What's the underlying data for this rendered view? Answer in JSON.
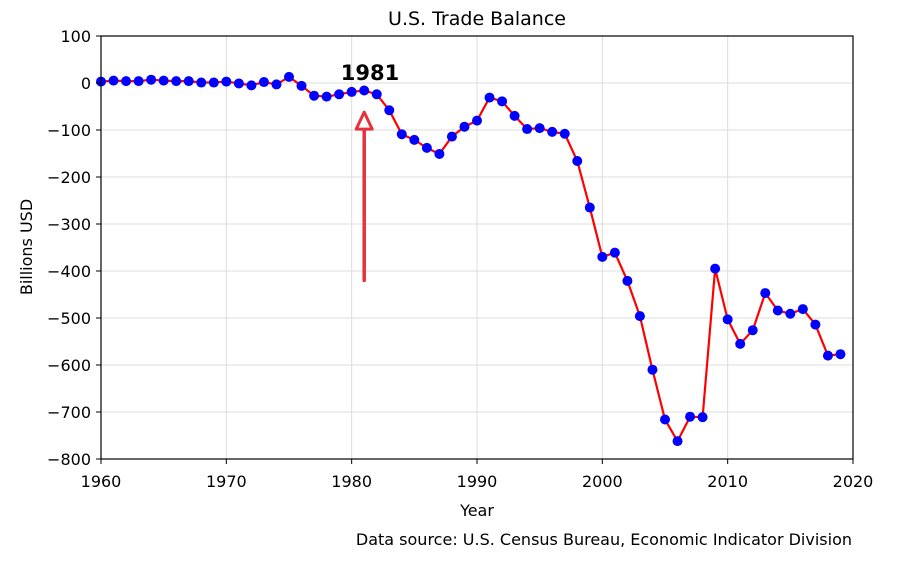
{
  "chart_data": {
    "type": "line",
    "title": "U.S. Trade Balance",
    "xlabel": "Year",
    "ylabel": "Billions USD",
    "xlim": [
      1960,
      2020
    ],
    "ylim": [
      -800,
      100
    ],
    "xticks": [
      1960,
      1970,
      1980,
      1990,
      2000,
      2010,
      2020
    ],
    "xtick_labels": [
      "1960",
      "1970",
      "1980",
      "1990",
      "2000",
      "2010",
      "2020"
    ],
    "yticks": [
      100,
      0,
      -100,
      -200,
      -300,
      -400,
      -500,
      -600,
      -700,
      -800
    ],
    "ytick_labels": [
      "100",
      "0",
      "−100",
      "−200",
      "−300",
      "−400",
      "−500",
      "−600",
      "−700",
      "−800"
    ],
    "grid": true,
    "line_color": "#ff0000",
    "marker_color": "#0000ff",
    "series": [
      {
        "x": [
          1960,
          1961,
          1962,
          1963,
          1964,
          1965,
          1966,
          1967,
          1968,
          1969,
          1970,
          1971,
          1972,
          1973,
          1974,
          1975,
          1976,
          1977,
          1978,
          1979,
          1980,
          1981,
          1982,
          1983,
          1984,
          1985,
          1986,
          1987,
          1988,
          1989,
          1990,
          1991,
          1992,
          1993,
          1994,
          1995,
          1996,
          1997,
          1998,
          1999,
          2000,
          2001,
          2002,
          2003,
          2004,
          2005,
          2006,
          2007,
          2008,
          2009,
          2010,
          2011,
          2012,
          2013,
          2014,
          2015,
          2016,
          2017,
          2018,
          2019
        ],
        "values": [
          3,
          5,
          4,
          4,
          7,
          5,
          4,
          4,
          1,
          1,
          3,
          -1,
          -5,
          2,
          -3,
          13,
          -6,
          -27,
          -29,
          -24,
          -19,
          -16,
          -24,
          -58,
          -109,
          -121,
          -138,
          -151,
          -114,
          -93,
          -80,
          -31,
          -39,
          -70,
          -98,
          -96,
          -104,
          -108,
          -166,
          -265,
          -370,
          -361,
          -421,
          -496,
          -610,
          -716,
          -762,
          -710,
          -711,
          -395,
          -503,
          -555,
          -526,
          -447,
          -484,
          -491,
          -481,
          -514,
          -580,
          -577
        ]
      }
    ],
    "annotation": {
      "text": "1981",
      "x": 1981,
      "arrow_from_y": -420,
      "arrow_to_y": -62,
      "arrow_color": "#e8303a"
    },
    "source_note": "Data source: U.S. Census Bureau, Economic Indicator Division"
  }
}
